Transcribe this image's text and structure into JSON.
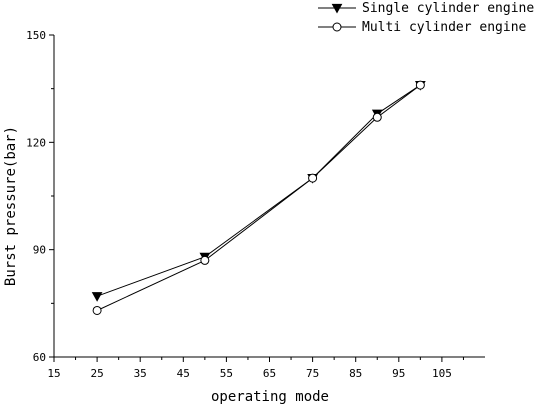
{
  "chart_data": {
    "type": "line",
    "xlabel": "operating mode",
    "ylabel": "Burst pressure(bar)",
    "xlim": [
      15,
      115
    ],
    "ylim": [
      60,
      150
    ],
    "x_ticks": [
      15,
      25,
      35,
      45,
      55,
      65,
      75,
      85,
      95,
      105
    ],
    "y_ticks": [
      60,
      90,
      120,
      150
    ],
    "grid": false,
    "legend_position": "top-right",
    "series": [
      {
        "name": "Single cylinder engine",
        "marker": "filled-triangle-down",
        "color": "#000000",
        "x": [
          25,
          50,
          75,
          90,
          100
        ],
        "y": [
          77,
          88,
          110,
          128,
          136
        ]
      },
      {
        "name": "Multi cylinder engine",
        "marker": "open-circle",
        "color": "#000000",
        "x": [
          25,
          50,
          75,
          90,
          100
        ],
        "y": [
          73,
          87,
          110,
          127,
          136
        ]
      }
    ]
  }
}
